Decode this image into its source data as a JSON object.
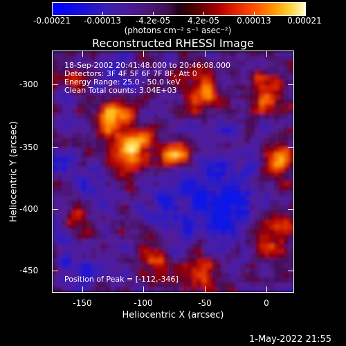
{
  "colorbar": {
    "tick_labels": [
      "-0.00021",
      "-0.00013",
      "-4.2e-05",
      "4.2e-05",
      "0.00013",
      "0.00021"
    ],
    "units_label": "(photons cm⁻² s⁻¹ asec⁻²)"
  },
  "title": "Reconstructed RHESSI Image",
  "x_axis": {
    "label": "Heliocentric X (arcsec)",
    "ticks": [
      "-150",
      "-100",
      "-50",
      "0"
    ]
  },
  "y_axis": {
    "label": "Heliocentric Y (arcsec)",
    "ticks": [
      "-300",
      "-350",
      "-400",
      "-450"
    ]
  },
  "info": {
    "time_range": "18-Sep-2002 20:41:48.000 to 20:46:08.000",
    "detectors": "Detectors: 3F 4F 5F 6F 7F 8F, Att 0",
    "energy": "Energy Range: 25.0 - 50.0 keV",
    "algorithm": "Clean    Total counts: 3.04E+03",
    "peak": "Position of Peak = [-112,-346]"
  },
  "timestamp": "1-May-2022 21:55",
  "colors": {
    "background": "#000000",
    "foreground": "#ffffff"
  }
}
